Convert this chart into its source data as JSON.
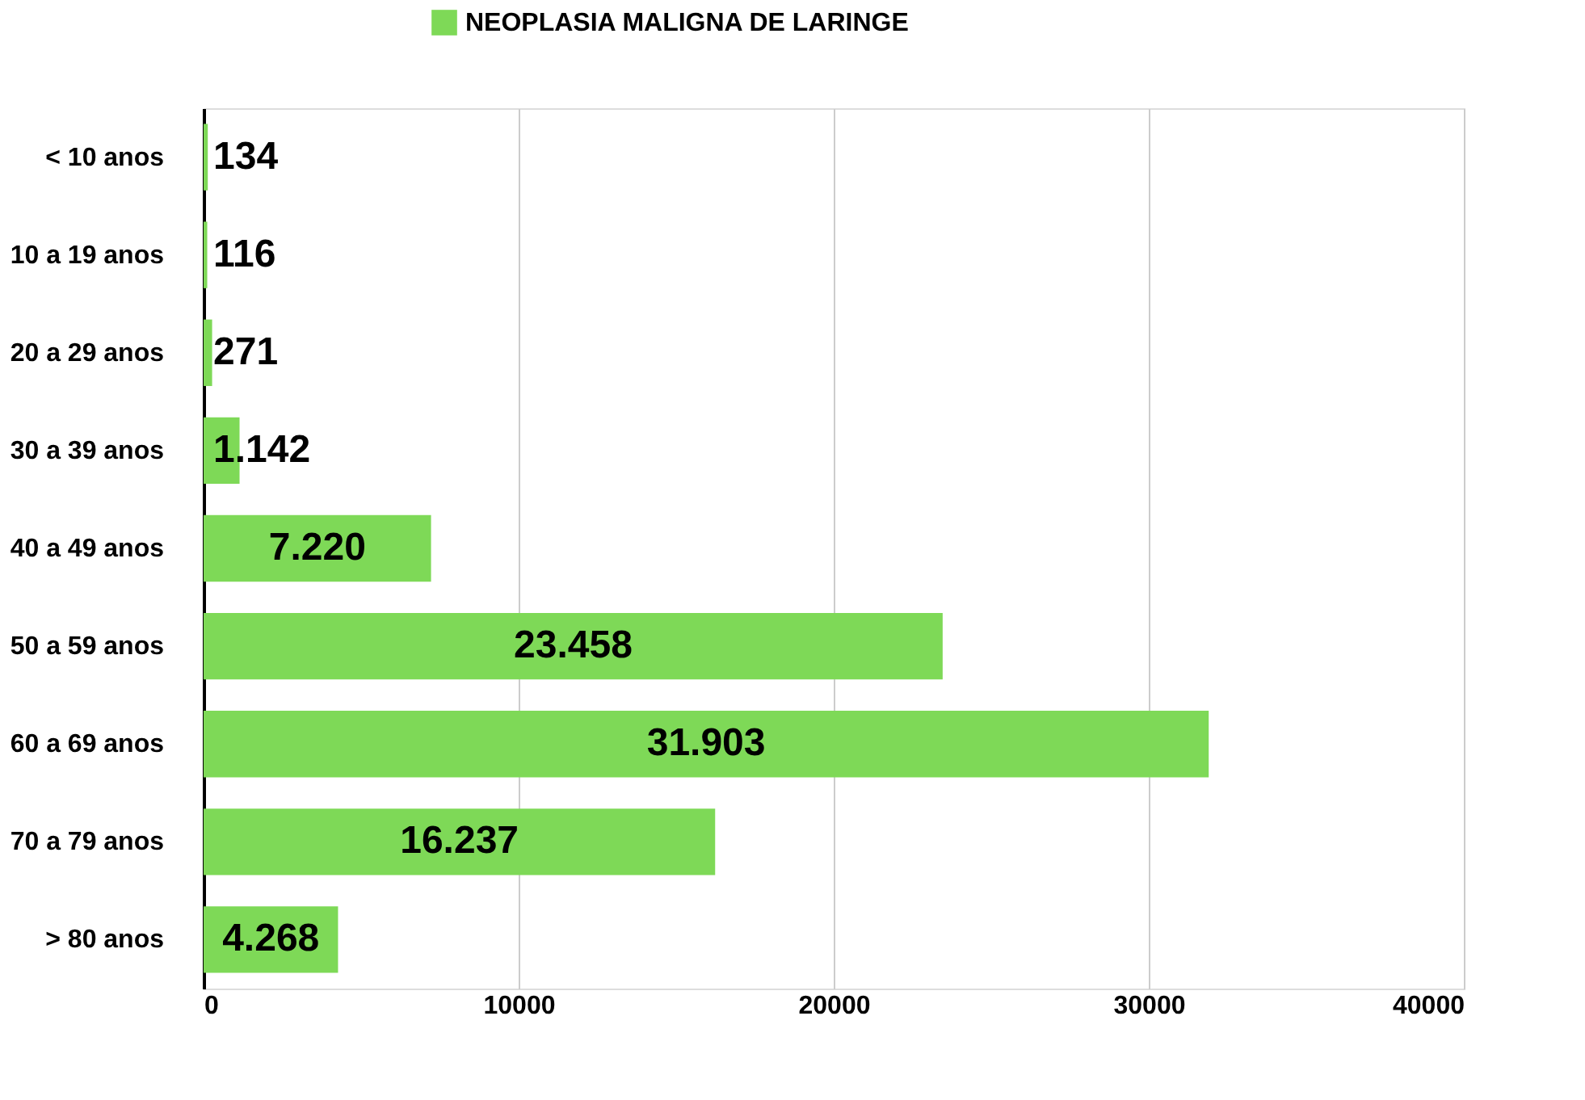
{
  "chart_data": {
    "type": "bar",
    "orientation": "horizontal",
    "categories": [
      "< 10 anos",
      "10 a 19 anos",
      "20 a 29 anos",
      "30 a 39 anos",
      "40 a 49 anos",
      "50 a 59 anos",
      "60 a 69 anos",
      "70 a 79 anos",
      "> 80 anos"
    ],
    "series": [
      {
        "name": "NEOPLASIA MALIGNA DE LARINGE",
        "color": "#7ed957",
        "values": [
          134,
          116,
          271,
          1142,
          7220,
          23458,
          31903,
          16237,
          4268
        ],
        "value_labels": [
          "134",
          "116",
          "271",
          "1.142",
          "7.220",
          "23.458",
          "31.903",
          "16.237",
          "4.268"
        ]
      }
    ],
    "xlim": [
      0,
      40000
    ],
    "xticks": [
      0,
      {
        "value": 10000,
        "label": "10000"
      },
      {
        "value": 20000,
        "label": "20000"
      },
      {
        "value": 30000,
        "label": "30000"
      },
      {
        "value": 40000,
        "label": "40000"
      }
    ],
    "grid": "x",
    "legend": "top"
  }
}
